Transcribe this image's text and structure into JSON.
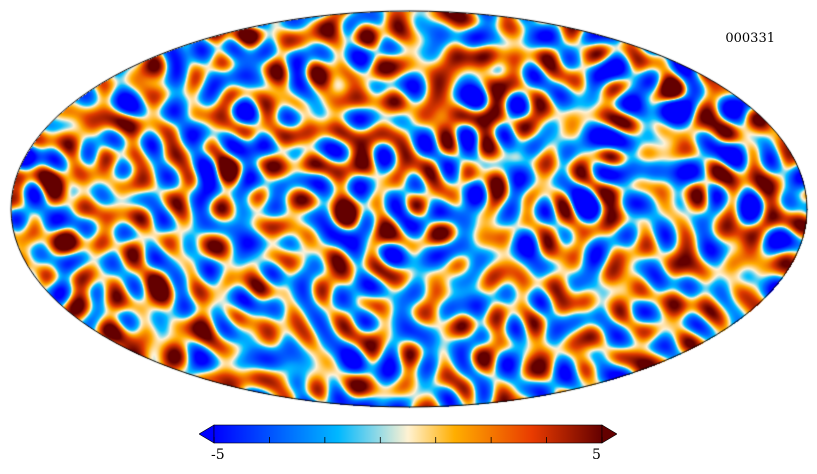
{
  "map": {
    "id_label": "000331",
    "projection": "mollweide",
    "palette": "planck-cmb"
  },
  "colorbar": {
    "min_label": "-5",
    "max_label": "5",
    "min": -5,
    "max": 5,
    "extend": "both",
    "colors": [
      "#0000ff",
      "#00b8ff",
      "#fff2d2",
      "#ffae00",
      "#e93b00",
      "#640000"
    ]
  }
}
